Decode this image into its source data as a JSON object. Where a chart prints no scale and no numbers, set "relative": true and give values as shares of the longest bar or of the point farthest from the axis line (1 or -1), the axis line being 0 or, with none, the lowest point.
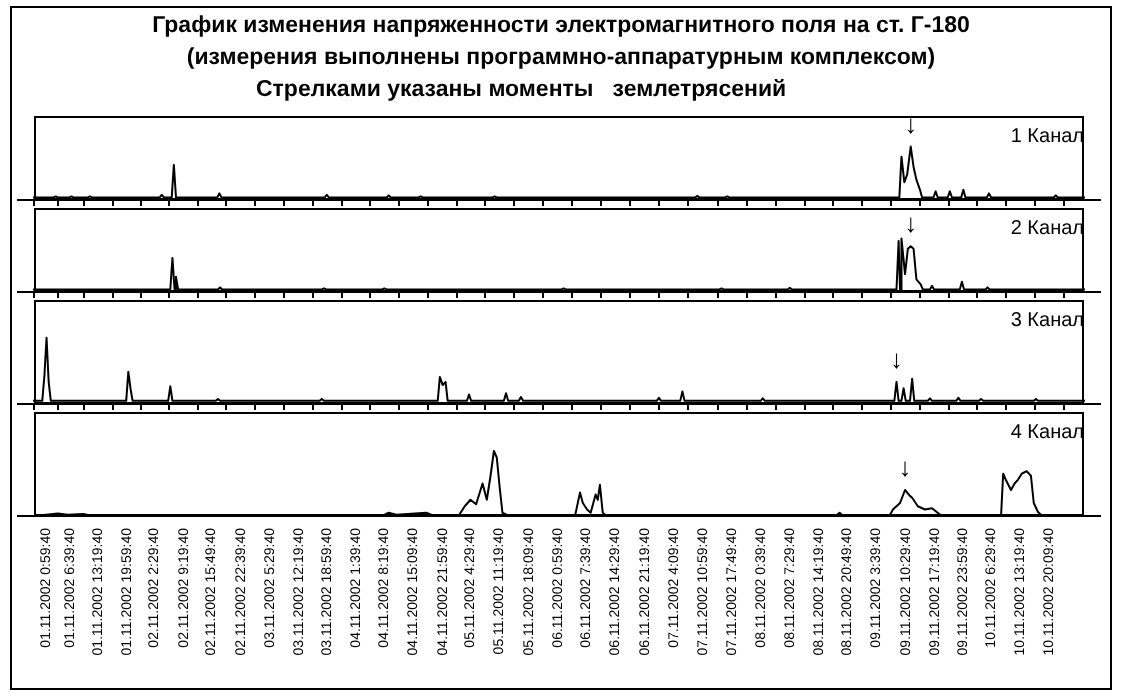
{
  "chart_data": [
    {
      "type": "line",
      "title": "График изменения напряженности электромагнитного поля на  ст. Г-180",
      "subtitle": "(измерения выполнены программно-аппаратурным комплексом)",
      "annotations": [
        "Стрелками указаны моменты   землетрясений",
        {
          "text": "↓",
          "x": "2002-11-09T11:40",
          "y": 1.0
        }
      ],
      "relative": true,
      "xlim": [
        "2002-10-31T22:00",
        "2002-11-11T04:30"
      ],
      "tick_labels": false,
      "xticks": [
        {
          "value": "2002-11-01T00:59",
          "label": null
        },
        {
          "value": "2002-11-01T06:39",
          "label": null
        },
        {
          "value": "2002-11-01T13:19",
          "label": null
        },
        {
          "value": "2002-11-01T19:59",
          "label": null
        },
        {
          "value": "2002-11-02T02:29",
          "label": null
        },
        {
          "value": "2002-11-02T09:19",
          "label": null
        },
        {
          "value": "2002-11-02T15:49",
          "label": null
        },
        {
          "value": "2002-11-02T22:39",
          "label": null
        },
        {
          "value": "2002-11-03T05:29",
          "label": null
        },
        {
          "value": "2002-11-03T12:19",
          "label": null
        },
        {
          "value": "2002-11-03T18:59",
          "label": null
        },
        {
          "value": "2002-11-04T01:39",
          "label": null
        },
        {
          "value": "2002-11-04T08:19",
          "label": null
        },
        {
          "value": "2002-11-04T15:09",
          "label": null
        },
        {
          "value": "2002-11-04T21:59",
          "label": null
        },
        {
          "value": "2002-11-05T04:29",
          "label": null
        },
        {
          "value": "2002-11-05T11:19",
          "label": null
        },
        {
          "value": "2002-11-05T18:09",
          "label": null
        },
        {
          "value": "2002-11-06T00:59",
          "label": null
        },
        {
          "value": "2002-11-06T07:39",
          "label": null
        },
        {
          "value": "2002-11-06T14:29",
          "label": null
        },
        {
          "value": "2002-11-06T21:19",
          "label": null
        },
        {
          "value": "2002-11-07T04:09",
          "label": null
        },
        {
          "value": "2002-11-07T10:59",
          "label": null
        },
        {
          "value": "2002-11-07T17:49",
          "label": null
        },
        {
          "value": "2002-11-08T00:39",
          "label": null
        },
        {
          "value": "2002-11-08T07:29",
          "label": null
        },
        {
          "value": "2002-11-08T14:19",
          "label": null
        },
        {
          "value": "2002-11-08T20:49",
          "label": null
        },
        {
          "value": "2002-11-09T03:39",
          "label": null
        },
        {
          "value": "2002-11-09T10:29",
          "label": null
        },
        {
          "value": "2002-11-09T17:19",
          "label": null
        },
        {
          "value": "2002-11-09T23:59",
          "label": null
        },
        {
          "value": "2002-11-10T06:29",
          "label": null
        },
        {
          "value": "2002-11-10T13:19",
          "label": null
        },
        {
          "value": "2002-11-10T20:09",
          "label": null
        }
      ],
      "series": [
        {
          "name": "1 Канал",
          "color": "#000000",
          "x": [
            "2002-10-31T22:00",
            "2002-11-01T02:50",
            "2002-11-01T03:20",
            "2002-11-01T03:50",
            "2002-11-01T06:30",
            "2002-11-01T07:00",
            "2002-11-01T07:30",
            "2002-11-01T10:50",
            "2002-11-01T11:20",
            "2002-11-01T11:50",
            "2002-11-02T03:40",
            "2002-11-02T04:10",
            "2002-11-02T04:40",
            "2002-11-02T06:30",
            "2002-11-02T07:00",
            "2002-11-02T07:30",
            "2002-11-02T17:10",
            "2002-11-02T17:40",
            "2002-11-02T18:10",
            "2002-11-03T18:20",
            "2002-11-03T18:50",
            "2002-11-03T19:20",
            "2002-11-04T08:50",
            "2002-11-04T09:20",
            "2002-11-04T09:50",
            "2002-11-04T16:20",
            "2002-11-04T16:50",
            "2002-11-04T17:20",
            "2002-11-05T09:40",
            "2002-11-05T10:10",
            "2002-11-05T10:40",
            "2002-11-07T09:10",
            "2002-11-07T09:40",
            "2002-11-07T10:10",
            "2002-11-07T16:10",
            "2002-11-07T16:40",
            "2002-11-07T17:10",
            "2002-11-09T09:00",
            "2002-11-09T09:30",
            "2002-11-09T10:10",
            "2002-11-09T10:50",
            "2002-11-09T11:40",
            "2002-11-09T12:20",
            "2002-11-09T13:00",
            "2002-11-09T13:50",
            "2002-11-09T14:20",
            "2002-11-09T17:00",
            "2002-11-09T17:30",
            "2002-11-09T18:00",
            "2002-11-09T20:20",
            "2002-11-09T20:50",
            "2002-11-09T21:20",
            "2002-11-09T23:30",
            "2002-11-10T00:00",
            "2002-11-10T00:30",
            "2002-11-10T05:30",
            "2002-11-10T06:00",
            "2002-11-10T06:30",
            "2002-11-10T21:10",
            "2002-11-10T21:40",
            "2002-11-10T22:10",
            "2002-11-11T04:30"
          ],
          "values": [
            0,
            0,
            0.02,
            0,
            0,
            0.02,
            0,
            0,
            0.02,
            0,
            0,
            0.05,
            0,
            0,
            0.64,
            0,
            0,
            0.08,
            0,
            0,
            0.05,
            0,
            0,
            0.04,
            0,
            0,
            0.02,
            0,
            0,
            0.02,
            0,
            0,
            0.03,
            0,
            0,
            0.02,
            0,
            0,
            0.8,
            0.3,
            0.45,
            1.0,
            0.6,
            0.35,
            0.15,
            0,
            0,
            0.12,
            0,
            0,
            0.12,
            0,
            0,
            0.15,
            0,
            0,
            0.08,
            0,
            0,
            0.04,
            0,
            0
          ]
        }
      ]
    },
    {
      "type": "line",
      "annotations": [
        {
          "text": "↓",
          "x": "2002-11-09T11:40",
          "y": 0.85
        }
      ],
      "relative": true,
      "xlim": [
        "2002-10-31T22:00",
        "2002-11-11T04:30"
      ],
      "tick_labels": false,
      "xticks": [
        {
          "value": "2002-11-01T00:59",
          "label": null
        },
        {
          "value": "2002-11-01T06:39",
          "label": null
        },
        {
          "value": "2002-11-01T13:19",
          "label": null
        },
        {
          "value": "2002-11-01T19:59",
          "label": null
        },
        {
          "value": "2002-11-02T02:29",
          "label": null
        },
        {
          "value": "2002-11-02T09:19",
          "label": null
        },
        {
          "value": "2002-11-02T15:49",
          "label": null
        },
        {
          "value": "2002-11-02T22:39",
          "label": null
        },
        {
          "value": "2002-11-03T05:29",
          "label": null
        },
        {
          "value": "2002-11-03T12:19",
          "label": null
        },
        {
          "value": "2002-11-03T18:59",
          "label": null
        },
        {
          "value": "2002-11-04T01:39",
          "label": null
        },
        {
          "value": "2002-11-04T08:19",
          "label": null
        },
        {
          "value": "2002-11-04T15:09",
          "label": null
        },
        {
          "value": "2002-11-04T21:59",
          "label": null
        },
        {
          "value": "2002-11-05T04:29",
          "label": null
        },
        {
          "value": "2002-11-05T11:19",
          "label": null
        },
        {
          "value": "2002-11-05T18:09",
          "label": null
        },
        {
          "value": "2002-11-06T00:59",
          "label": null
        },
        {
          "value": "2002-11-06T07:39",
          "label": null
        },
        {
          "value": "2002-11-06T14:29",
          "label": null
        },
        {
          "value": "2002-11-06T21:19",
          "label": null
        },
        {
          "value": "2002-11-07T04:09",
          "label": null
        },
        {
          "value": "2002-11-07T10:59",
          "label": null
        },
        {
          "value": "2002-11-07T17:49",
          "label": null
        },
        {
          "value": "2002-11-08T00:39",
          "label": null
        },
        {
          "value": "2002-11-08T07:29",
          "label": null
        },
        {
          "value": "2002-11-08T14:19",
          "label": null
        },
        {
          "value": "2002-11-08T20:49",
          "label": null
        },
        {
          "value": "2002-11-09T03:39",
          "label": null
        },
        {
          "value": "2002-11-09T10:29",
          "label": null
        },
        {
          "value": "2002-11-09T17:19",
          "label": null
        },
        {
          "value": "2002-11-09T23:59",
          "label": null
        },
        {
          "value": "2002-11-10T06:29",
          "label": null
        },
        {
          "value": "2002-11-10T13:19",
          "label": null
        },
        {
          "value": "2002-11-10T20:09",
          "label": null
        }
      ],
      "series": [
        {
          "name": "2 Канал",
          "color": "#000000",
          "x": [
            "2002-10-31T22:00",
            "2002-11-02T06:10",
            "2002-11-02T06:40",
            "2002-11-02T07:10",
            "2002-11-02T07:30",
            "2002-11-02T08:00",
            "2002-11-02T17:20",
            "2002-11-02T17:50",
            "2002-11-02T18:20",
            "2002-11-03T17:40",
            "2002-11-03T18:10",
            "2002-11-03T18:40",
            "2002-11-04T07:50",
            "2002-11-04T08:20",
            "2002-11-04T08:50",
            "2002-11-06T01:50",
            "2002-11-06T02:20",
            "2002-11-06T02:50",
            "2002-11-07T14:50",
            "2002-11-07T15:20",
            "2002-11-07T15:50",
            "2002-11-08T06:50",
            "2002-11-08T07:20",
            "2002-11-08T07:50",
            "2002-11-09T08:20",
            "2002-11-09T08:50",
            "2002-11-09T09:10",
            "2002-11-09T09:30",
            "2002-11-09T10:20",
            "2002-11-09T11:00",
            "2002-11-09T11:40",
            "2002-11-09T12:20",
            "2002-11-09T13:00",
            "2002-11-09T14:00",
            "2002-11-09T14:30",
            "2002-11-09T16:10",
            "2002-11-09T16:40",
            "2002-11-09T17:10",
            "2002-11-09T23:10",
            "2002-11-09T23:40",
            "2002-11-10T00:10",
            "2002-11-10T05:10",
            "2002-11-10T05:40",
            "2002-11-10T06:10",
            "2002-11-11T04:30"
          ],
          "values": [
            0,
            0,
            0.62,
            0,
            0.25,
            0,
            0,
            0.04,
            0,
            0,
            0.02,
            0,
            0,
            0.02,
            0,
            0,
            0.02,
            0,
            0,
            0.02,
            0,
            0,
            0.03,
            0,
            0,
            0.95,
            0,
            1.0,
            0.3,
            0.8,
            0.85,
            0.8,
            0.2,
            0.1,
            0,
            0,
            0.07,
            0,
            0,
            0.15,
            0,
            0,
            0.04,
            0,
            0
          ]
        }
      ]
    },
    {
      "type": "line",
      "annotations": [
        {
          "text": "↓",
          "x": "2002-11-09T08:20",
          "y": 0.3
        }
      ],
      "relative": true,
      "xlim": [
        "2002-10-31T22:00",
        "2002-11-11T04:30"
      ],
      "tick_labels": false,
      "xticks": [
        {
          "value": "2002-11-01T00:59",
          "label": null
        },
        {
          "value": "2002-11-01T06:39",
          "label": null
        },
        {
          "value": "2002-11-01T13:19",
          "label": null
        },
        {
          "value": "2002-11-01T19:59",
          "label": null
        },
        {
          "value": "2002-11-02T02:29",
          "label": null
        },
        {
          "value": "2002-11-02T09:19",
          "label": null
        },
        {
          "value": "2002-11-02T15:49",
          "label": null
        },
        {
          "value": "2002-11-02T22:39",
          "label": null
        },
        {
          "value": "2002-11-03T05:29",
          "label": null
        },
        {
          "value": "2002-11-03T12:19",
          "label": null
        },
        {
          "value": "2002-11-03T18:59",
          "label": null
        },
        {
          "value": "2002-11-04T01:39",
          "label": null
        },
        {
          "value": "2002-11-04T08:19",
          "label": null
        },
        {
          "value": "2002-11-04T15:09",
          "label": null
        },
        {
          "value": "2002-11-04T21:59",
          "label": null
        },
        {
          "value": "2002-11-05T04:29",
          "label": null
        },
        {
          "value": "2002-11-05T11:19",
          "label": null
        },
        {
          "value": "2002-11-05T18:09",
          "label": null
        },
        {
          "value": "2002-11-06T00:59",
          "label": null
        },
        {
          "value": "2002-11-06T07:39",
          "label": null
        },
        {
          "value": "2002-11-06T14:29",
          "label": null
        },
        {
          "value": "2002-11-06T21:19",
          "label": null
        },
        {
          "value": "2002-11-07T04:09",
          "label": null
        },
        {
          "value": "2002-11-07T10:59",
          "label": null
        },
        {
          "value": "2002-11-07T17:49",
          "label": null
        },
        {
          "value": "2002-11-08T00:39",
          "label": null
        },
        {
          "value": "2002-11-08T07:29",
          "label": null
        },
        {
          "value": "2002-11-08T14:19",
          "label": null
        },
        {
          "value": "2002-11-08T20:49",
          "label": null
        },
        {
          "value": "2002-11-09T03:39",
          "label": null
        },
        {
          "value": "2002-11-09T10:29",
          "label": null
        },
        {
          "value": "2002-11-09T17:19",
          "label": null
        },
        {
          "value": "2002-11-09T23:59",
          "label": null
        },
        {
          "value": "2002-11-10T06:29",
          "label": null
        },
        {
          "value": "2002-11-10T13:19",
          "label": null
        },
        {
          "value": "2002-11-10T20:09",
          "label": null
        }
      ],
      "series": [
        {
          "name": "3 Канал",
          "color": "#000000",
          "x": [
            "2002-10-31T22:00",
            "2002-11-01T00:10",
            "2002-11-01T00:40",
            "2002-11-01T01:10",
            "2002-11-01T01:40",
            "2002-11-01T02:10",
            "2002-11-01T19:50",
            "2002-11-01T20:20",
            "2002-11-01T20:50",
            "2002-11-01T21:20",
            "2002-11-02T05:40",
            "2002-11-02T06:10",
            "2002-11-02T06:40",
            "2002-11-02T16:50",
            "2002-11-02T17:20",
            "2002-11-02T17:50",
            "2002-11-03T17:10",
            "2002-11-03T17:40",
            "2002-11-03T18:10",
            "2002-11-04T20:50",
            "2002-11-04T21:20",
            "2002-11-04T22:00",
            "2002-11-04T22:40",
            "2002-11-04T23:10",
            "2002-11-05T03:40",
            "2002-11-05T04:10",
            "2002-11-05T04:40",
            "2002-11-05T12:20",
            "2002-11-05T12:50",
            "2002-11-05T13:20",
            "2002-11-05T15:50",
            "2002-11-05T16:20",
            "2002-11-05T16:50",
            "2002-11-07T00:10",
            "2002-11-07T00:40",
            "2002-11-07T01:10",
            "2002-11-07T05:40",
            "2002-11-07T06:10",
            "2002-11-07T06:40",
            "2002-11-08T00:30",
            "2002-11-08T01:00",
            "2002-11-08T01:30",
            "2002-11-09T07:50",
            "2002-11-09T08:20",
            "2002-11-09T08:50",
            "2002-11-09T09:30",
            "2002-11-09T10:00",
            "2002-11-09T10:30",
            "2002-11-09T11:30",
            "2002-11-09T12:00",
            "2002-11-09T12:30",
            "2002-11-09T15:40",
            "2002-11-09T16:10",
            "2002-11-09T16:40",
            "2002-11-09T22:20",
            "2002-11-09T22:50",
            "2002-11-09T23:20",
            "2002-11-10T03:40",
            "2002-11-10T04:10",
            "2002-11-10T04:40",
            "2002-11-10T16:30",
            "2002-11-10T17:00",
            "2002-11-10T17:30",
            "2002-11-11T04:30"
          ],
          "values": [
            0,
            0,
            0.4,
            1.0,
            0.3,
            0,
            0,
            0.46,
            0.2,
            0,
            0,
            0.23,
            0,
            0,
            0.03,
            0,
            0,
            0.03,
            0,
            0,
            0.38,
            0.25,
            0.3,
            0,
            0,
            0.1,
            0,
            0,
            0.12,
            0,
            0,
            0.06,
            0,
            0,
            0.05,
            0,
            0,
            0.15,
            0,
            0,
            0.04,
            0,
            0,
            0.3,
            0,
            0,
            0.2,
            0,
            0,
            0.35,
            0,
            0,
            0.04,
            0,
            0,
            0.05,
            0,
            0,
            0.03,
            0,
            0,
            0.03,
            0,
            0
          ]
        }
      ]
    },
    {
      "type": "line",
      "annotations": [
        {
          "text": "↓",
          "x": "2002-11-09T10:20",
          "y": 0.4
        }
      ],
      "relative": true,
      "xlim": [
        "2002-10-31T22:00",
        "2002-11-11T04:30"
      ],
      "tick_labels": "x",
      "xticks": [
        {
          "value": "2002-11-01T00:59",
          "label": "01.11.2002 0:59:40"
        },
        {
          "value": "2002-11-01T06:39",
          "label": "01.11.2002 6:39:40"
        },
        {
          "value": "2002-11-01T13:19",
          "label": "01.11.2002 13:19:40"
        },
        {
          "value": "2002-11-01T19:59",
          "label": "01.11.2002 19:59:40"
        },
        {
          "value": "2002-11-02T02:29",
          "label": "02.11.2002 2:29:40"
        },
        {
          "value": "2002-11-02T09:19",
          "label": "02.11.2002 9:19:40"
        },
        {
          "value": "2002-11-02T15:49",
          "label": "02.11.2002 15:49:40"
        },
        {
          "value": "2002-11-02T22:39",
          "label": "02.11.2002 22:39:40"
        },
        {
          "value": "2002-11-03T05:29",
          "label": "03.11.2002 5:29:40"
        },
        {
          "value": "2002-11-03T12:19",
          "label": "03.11.2002 12:19:40"
        },
        {
          "value": "2002-11-03T18:59",
          "label": "03.11.2002 18:59:40"
        },
        {
          "value": "2002-11-04T01:39",
          "label": "04.11.2002 1:39:40"
        },
        {
          "value": "2002-11-04T08:19",
          "label": "04.11.2002 8:19:40"
        },
        {
          "value": "2002-11-04T15:09",
          "label": "04.11.2002 15:09:40"
        },
        {
          "value": "2002-11-04T21:59",
          "label": "04.11.2002 21:59:40"
        },
        {
          "value": "2002-11-05T04:29",
          "label": "05.11.2002 4:29:40"
        },
        {
          "value": "2002-11-05T11:19",
          "label": "05.11.2002 11:19:40"
        },
        {
          "value": "2002-11-05T18:09",
          "label": "05.11.2002 18:09:40"
        },
        {
          "value": "2002-11-06T00:59",
          "label": "06.11.2002 0:59:40"
        },
        {
          "value": "2002-11-06T07:39",
          "label": "06.11.2002 7:39:40"
        },
        {
          "value": "2002-11-06T14:29",
          "label": "06.11.2002 14:29:40"
        },
        {
          "value": "2002-11-06T21:19",
          "label": "06.11.2002 21:19:40"
        },
        {
          "value": "2002-11-07T04:09",
          "label": "07.11.2002 4:09:40"
        },
        {
          "value": "2002-11-07T10:59",
          "label": "07.11.2002 10:59:40"
        },
        {
          "value": "2002-11-07T17:49",
          "label": "07.11.2002 17:49:40"
        },
        {
          "value": "2002-11-08T00:39",
          "label": "08.11.2002 0:39:40"
        },
        {
          "value": "2002-11-08T07:29",
          "label": "08.11.2002 7:29:40"
        },
        {
          "value": "2002-11-08T14:19",
          "label": "08.11.2002 14:19:40"
        },
        {
          "value": "2002-11-08T20:49",
          "label": "08.11.2002 20:49:40"
        },
        {
          "value": "2002-11-09T03:39",
          "label": "09.11.2002 3:39:40"
        },
        {
          "value": "2002-11-09T10:29",
          "label": "09.11.2002 10:29:40"
        },
        {
          "value": "2002-11-09T17:19",
          "label": "09.11.2002 17:19:40"
        },
        {
          "value": "2002-11-09T23:59",
          "label": "09.11.2002 23:59:40"
        },
        {
          "value": "2002-11-10T06:29",
          "label": "10.11.2002 6:29:40"
        },
        {
          "value": "2002-11-10T13:19",
          "label": "10.11.2002 13:19:40"
        },
        {
          "value": "2002-11-10T20:09",
          "label": "10.11.2002 20:09:40"
        }
      ],
      "series": [
        {
          "name": "4 Канал",
          "color": "#000000",
          "x": [
            "2002-10-31T22:10",
            "2002-11-01T03:50",
            "2002-11-01T06:10",
            "2002-11-01T09:50",
            "2002-11-01T11:50",
            "2002-11-04T07:50",
            "2002-11-04T09:20",
            "2002-11-04T11:10",
            "2002-11-04T18:10",
            "2002-11-04T20:00",
            "2002-11-05T01:40",
            "2002-11-05T03:10",
            "2002-11-05T04:30",
            "2002-11-05T05:50",
            "2002-11-05T07:20",
            "2002-11-05T08:20",
            "2002-11-05T09:10",
            "2002-11-05T10:00",
            "2002-11-05T10:40",
            "2002-11-05T11:20",
            "2002-11-05T12:00",
            "2002-11-05T13:30",
            "2002-11-06T05:00",
            "2002-11-06T06:10",
            "2002-11-06T06:50",
            "2002-11-06T07:50",
            "2002-11-06T08:40",
            "2002-11-06T09:50",
            "2002-11-06T10:20",
            "2002-11-06T10:50",
            "2002-11-06T11:30",
            "2002-11-06T12:30",
            "2002-11-08T18:00",
            "2002-11-08T19:00",
            "2002-11-08T19:50",
            "2002-11-09T06:40",
            "2002-11-09T07:30",
            "2002-11-09T09:10",
            "2002-11-09T10:20",
            "2002-11-09T11:20",
            "2002-11-09T12:00",
            "2002-11-09T13:20",
            "2002-11-09T15:00",
            "2002-11-09T16:40",
            "2002-11-09T18:20",
            "2002-11-09T19:20",
            "2002-11-10T08:50",
            "2002-11-10T09:20",
            "2002-11-10T10:00",
            "2002-11-10T11:10",
            "2002-11-10T12:00",
            "2002-11-10T12:50",
            "2002-11-10T13:40",
            "2002-11-10T14:50",
            "2002-11-10T15:50",
            "2002-11-10T16:30",
            "2002-11-10T17:30",
            "2002-11-10T18:30",
            "2002-11-11T04:20"
          ],
          "values": [
            0,
            0.04,
            0.02,
            0.03,
            0,
            0,
            0.05,
            0.02,
            0.05,
            0,
            0,
            0.15,
            0.25,
            0.18,
            0.5,
            0.25,
            0.6,
            1.0,
            0.9,
            0.45,
            0.05,
            0,
            0,
            0.36,
            0.2,
            0.1,
            0.05,
            0.33,
            0.25,
            0.48,
            0.05,
            0,
            0,
            0.05,
            0,
            0,
            0.1,
            0.2,
            0.4,
            0.32,
            0.28,
            0.15,
            0.1,
            0.12,
            0.03,
            0,
            0,
            0.65,
            0.55,
            0.4,
            0.5,
            0.56,
            0.65,
            0.69,
            0.62,
            0.2,
            0.06,
            0,
            0
          ]
        }
      ]
    }
  ]
}
